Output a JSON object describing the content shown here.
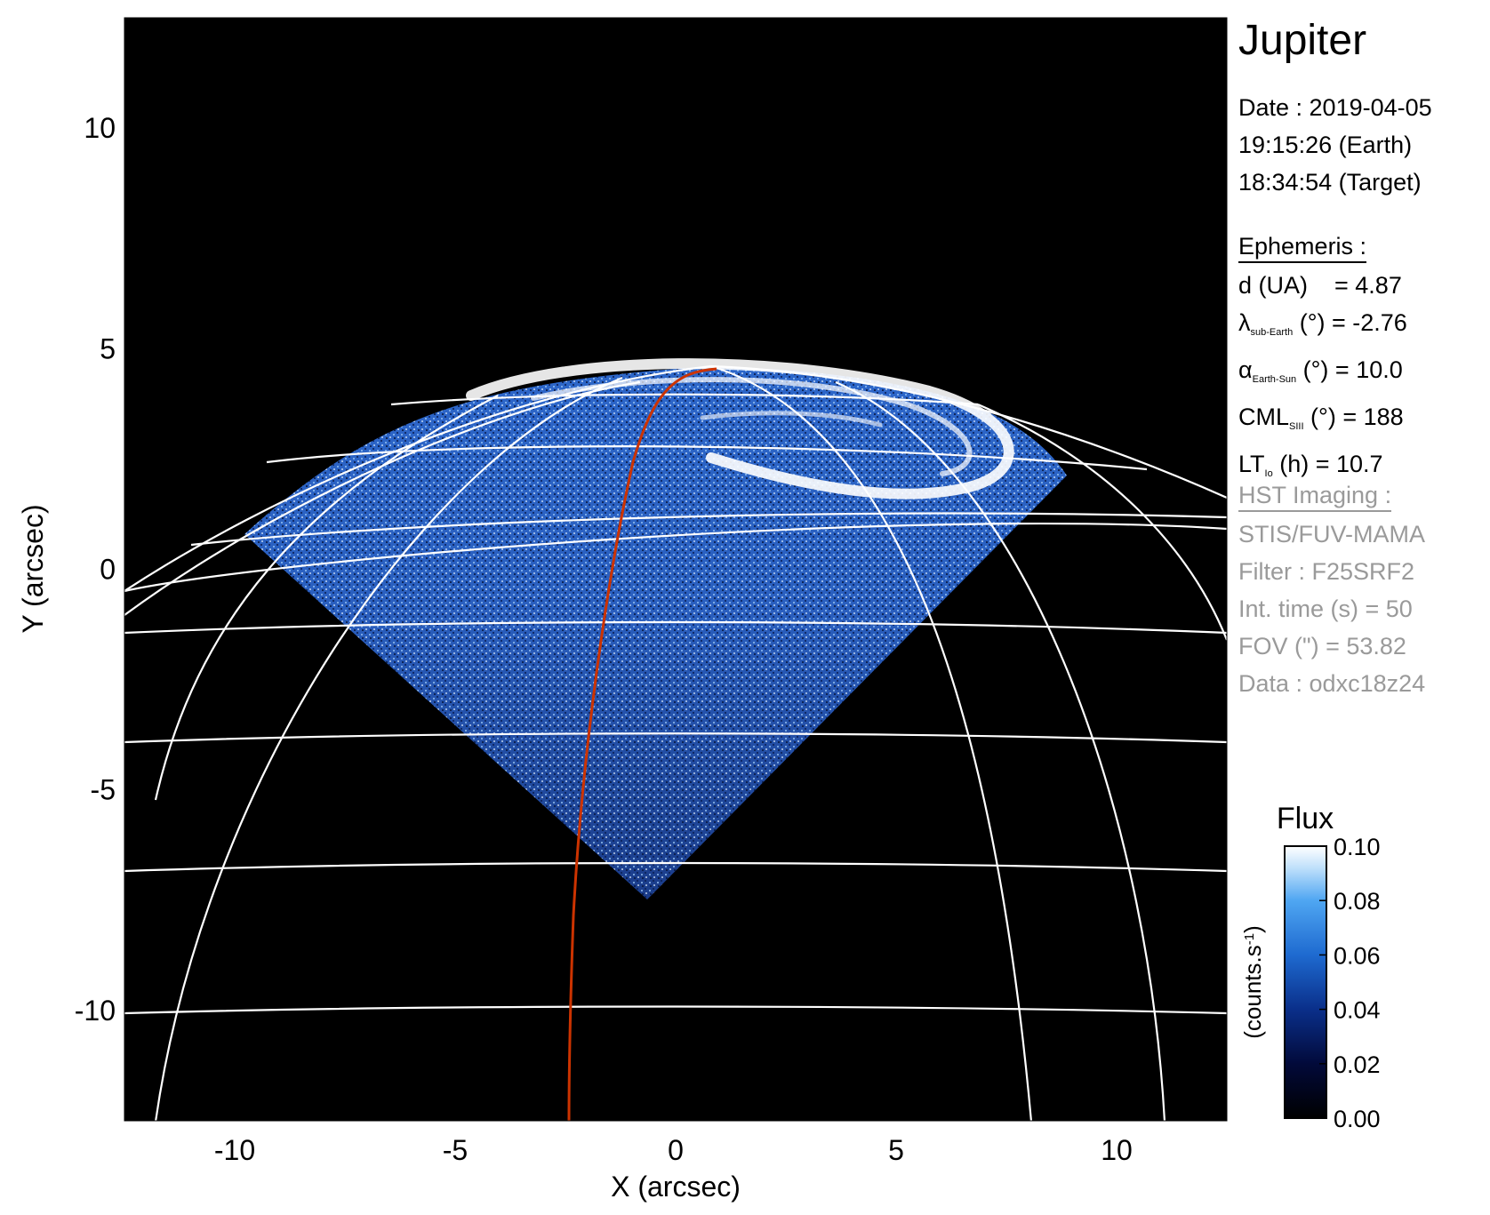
{
  "panel": {
    "title": "Jupiter",
    "date_line": "Date : 2019-04-05",
    "earth_time": "19:15:26 (Earth)",
    "target_time": "18:34:54 (Target)",
    "ephemeris": {
      "heading": "Ephemeris :",
      "distance": "d (UA)    = 4.87",
      "lat_symbol": "λ",
      "lat_sub": "sub-Earth",
      "lat_rest": " (°) = -2.76",
      "phase_symbol": "α",
      "phase_sub": "Earth-Sun",
      "phase_rest": " (°) = 10.0",
      "cml_main": "CML",
      "cml_sub": "SIII",
      "cml_rest": " (°) = 188",
      "lt_main": "LT",
      "lt_sub": "Io",
      "lt_rest": " (h) = 10.7"
    },
    "hst": {
      "heading": "HST Imaging :",
      "instrument": "STIS/FUV-MAMA",
      "filter": "Filter : F25SRF2",
      "int_time": "Int. time (s) = 50",
      "fov": "FOV (\") = 53.82",
      "dataset": "Data : odxc18z24"
    }
  },
  "chart_data": {
    "type": "image",
    "xlabel": "X (arcsec)",
    "ylabel": "Y (arcsec)",
    "xlim": [
      -12.5,
      12.5
    ],
    "ylim": [
      -12.5,
      12.5
    ],
    "x_ticks": [
      -10,
      -5,
      0,
      5,
      10
    ],
    "x_tick_labels": [
      "-10",
      "-5",
      "0",
      "5",
      "10"
    ],
    "y_ticks": [
      10,
      5,
      0,
      -5,
      -10
    ],
    "y_tick_labels": [
      "10",
      "5",
      "0",
      "-5",
      "-10"
    ],
    "colorbar": {
      "title": "Flux",
      "label_main": "(counts.s",
      "label_sup": "-1",
      "label_end": ")",
      "ticks": [
        0.1,
        0.08,
        0.06,
        0.04,
        0.02,
        0.0
      ],
      "tick_labels": [
        "0.10",
        "0.08",
        "0.06",
        "0.04",
        "0.02",
        "0.00"
      ],
      "range": [
        0.0,
        0.1
      ]
    },
    "colors": {
      "background": "#000000",
      "grid": "#ffffff",
      "footprint": "#cc3300",
      "emission": "#3a7bd5"
    }
  }
}
